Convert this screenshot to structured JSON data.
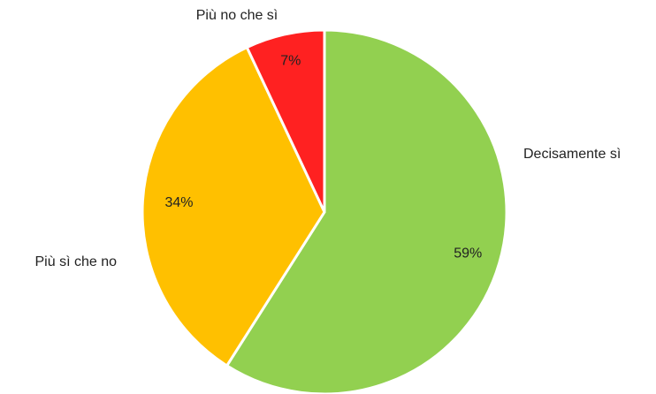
{
  "chart_data": {
    "type": "pie",
    "categories": [
      "Decisamente sì",
      "Più sì che no",
      "Più no che sì"
    ],
    "values": [
      59,
      34,
      7
    ],
    "value_labels": [
      "59%",
      "34%",
      "7%"
    ],
    "colors": [
      "#92d050",
      "#ffc000",
      "#ff2121"
    ]
  }
}
